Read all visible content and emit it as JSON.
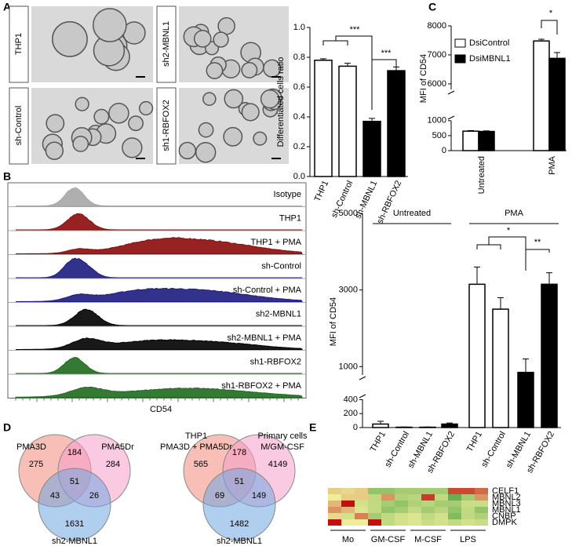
{
  "panel_labels": [
    "A",
    "B",
    "C",
    "D",
    "E"
  ],
  "micrographs": [
    "THP1",
    "sh2-MBNL1",
    "sh-Control",
    "sh1-RBFOX2"
  ],
  "chart_data": [
    {
      "type": "bar",
      "ylabel": "Differentiated cells ratio",
      "categories": [
        "THP1",
        "sh-Control",
        "sh-MBNL1",
        "sh-RBFOX2"
      ],
      "values": [
        0.78,
        0.74,
        0.37,
        0.71
      ],
      "errors": [
        0.01,
        0.02,
        0.02,
        0.025
      ],
      "colors": [
        "#ffffff",
        "#ffffff",
        "#000000",
        "#000000"
      ],
      "ylim": [
        0,
        1
      ],
      "yticks": [
        {
          "value": 0,
          "label": "0.0"
        },
        0.2,
        0.4,
        0.6,
        0.8,
        {
          "value": 1,
          "label": "1.0"
        }
      ],
      "annotations": [
        "***",
        "***"
      ]
    },
    {
      "type": "grouped_bar",
      "ylabel": "MFI of CD54",
      "categories": [
        "Untreated",
        "PMA"
      ],
      "series": [
        {
          "name": "DsiControl",
          "color": "#ffffff",
          "values": [
            650,
            7480
          ],
          "errors": [
            20,
            60
          ]
        },
        {
          "name": "DsiMBNL1",
          "color": "#000000",
          "values": [
            640,
            6880
          ],
          "errors": [
            20,
            200
          ]
        }
      ],
      "ylim": [
        0,
        8000
      ],
      "ybreak": [
        1100,
        5700
      ],
      "yticks": [
        0,
        500,
        1000,
        6000,
        7000,
        8000
      ],
      "annotations": [
        "*"
      ]
    },
    {
      "type": "bar",
      "ylabel": "MFI of CD54",
      "groups": [
        "Untreated",
        "PMA"
      ],
      "categories": [
        "THP1",
        "sh-Control",
        "sh-MBNL1",
        "sh-RBFOX2",
        "THP1",
        "sh-Control",
        "sh-MBNL1",
        "sh-RBFOX2"
      ],
      "values": [
        50,
        5,
        5,
        50,
        3150,
        2500,
        850,
        3150
      ],
      "errors": [
        40,
        3,
        3,
        15,
        450,
        300,
        350,
        300
      ],
      "colors": [
        "#ffffff",
        "#ffffff",
        "#000000",
        "#000000",
        "#ffffff",
        "#ffffff",
        "#000000",
        "#000000"
      ],
      "ylim": [
        0,
        5000
      ],
      "ybreak": [
        450,
        700
      ],
      "yticks": [
        0,
        200,
        400,
        1000,
        3000,
        5000
      ],
      "annotations": [
        "*",
        "**"
      ]
    },
    {
      "type": "heatmap",
      "rows": [
        "CELF1",
        "MBNL2",
        "MBNL3",
        "MBNL1",
        "CNBP",
        "DMPK"
      ],
      "groups": [
        "Mo",
        "GM-CSF",
        "M-CSF",
        "LPS"
      ],
      "zlim": [
        -2,
        2
      ],
      "colors": [
        "#3a9a3a",
        "#eeee99",
        "#c01010"
      ],
      "values": [
        [
          0.3,
          0.2,
          0.3,
          -1,
          -1,
          -0.8,
          -0.8,
          -0.8,
          -0.8,
          1.5,
          1.5,
          1.2
        ],
        [
          0,
          0.3,
          0.3,
          -0.5,
          0.8,
          -0.7,
          -0.6,
          1.6,
          -0.5,
          -1.5,
          -0.8,
          0.8
        ],
        [
          0.5,
          2,
          -0.3,
          -0.5,
          -0.8,
          -1,
          -0.7,
          -0.6,
          -0.8,
          -0.8,
          -0.4,
          -0.4
        ],
        [
          0.8,
          0.5,
          -0.2,
          -0.5,
          -1,
          -0.8,
          -0.5,
          -0.8,
          -0.6,
          -1,
          -0.5,
          -1
        ],
        [
          0.2,
          -0.3,
          1,
          -0.8,
          -0.5,
          -0.3,
          -0.2,
          -0.5,
          -0.3,
          -1.2,
          -0.5,
          -0.7
        ],
        [
          2,
          0,
          0,
          2,
          -0.5,
          -0.3,
          -0.2,
          -0.4,
          -0.3,
          -0.5,
          -0.3,
          -0.4
        ]
      ]
    }
  ],
  "flow": {
    "xlabel": "CD54",
    "rows": [
      {
        "label": "Isotype",
        "color": "#a6a6a6"
      },
      {
        "label": "THP1",
        "color": "#8b0a0a"
      },
      {
        "label": "THP1 + PMA",
        "color": "#8b0a0a"
      },
      {
        "label": "sh-Control",
        "color": "#1c1c80"
      },
      {
        "label": "sh-Control + PMA",
        "color": "#1c1c80"
      },
      {
        "label": "sh2-MBNL1",
        "color": "#000000"
      },
      {
        "label": "sh2-MBNL1 + PMA",
        "color": "#000000"
      },
      {
        "label": "sh1-RBFOX2",
        "color": "#1e6b1e"
      },
      {
        "label": "sh1-RBFOX2 + PMA",
        "color": "#1e6b1e"
      }
    ]
  },
  "venn": [
    {
      "sets": [
        [
          "PMA3D"
        ],
        [
          "PMA5Dr"
        ],
        [
          "sh2-MBNL1"
        ]
      ],
      "colors": [
        "#f08a7a",
        "#f59ccb",
        "#6fa8e0"
      ],
      "counts": [
        275,
        184,
        284,
        43,
        51,
        26,
        1631
      ]
    },
    {
      "sets": [
        [
          "THP1",
          "PMA3D + PMA5Dr"
        ],
        [
          "Primary cells",
          "M/GM-CSF"
        ],
        [
          "sh2-MBNL1"
        ]
      ],
      "colors": [
        "#f08a7a",
        "#f59ccb",
        "#6fa8e0"
      ],
      "counts": [
        565,
        178,
        4149,
        69,
        51,
        149,
        1482
      ]
    }
  ]
}
